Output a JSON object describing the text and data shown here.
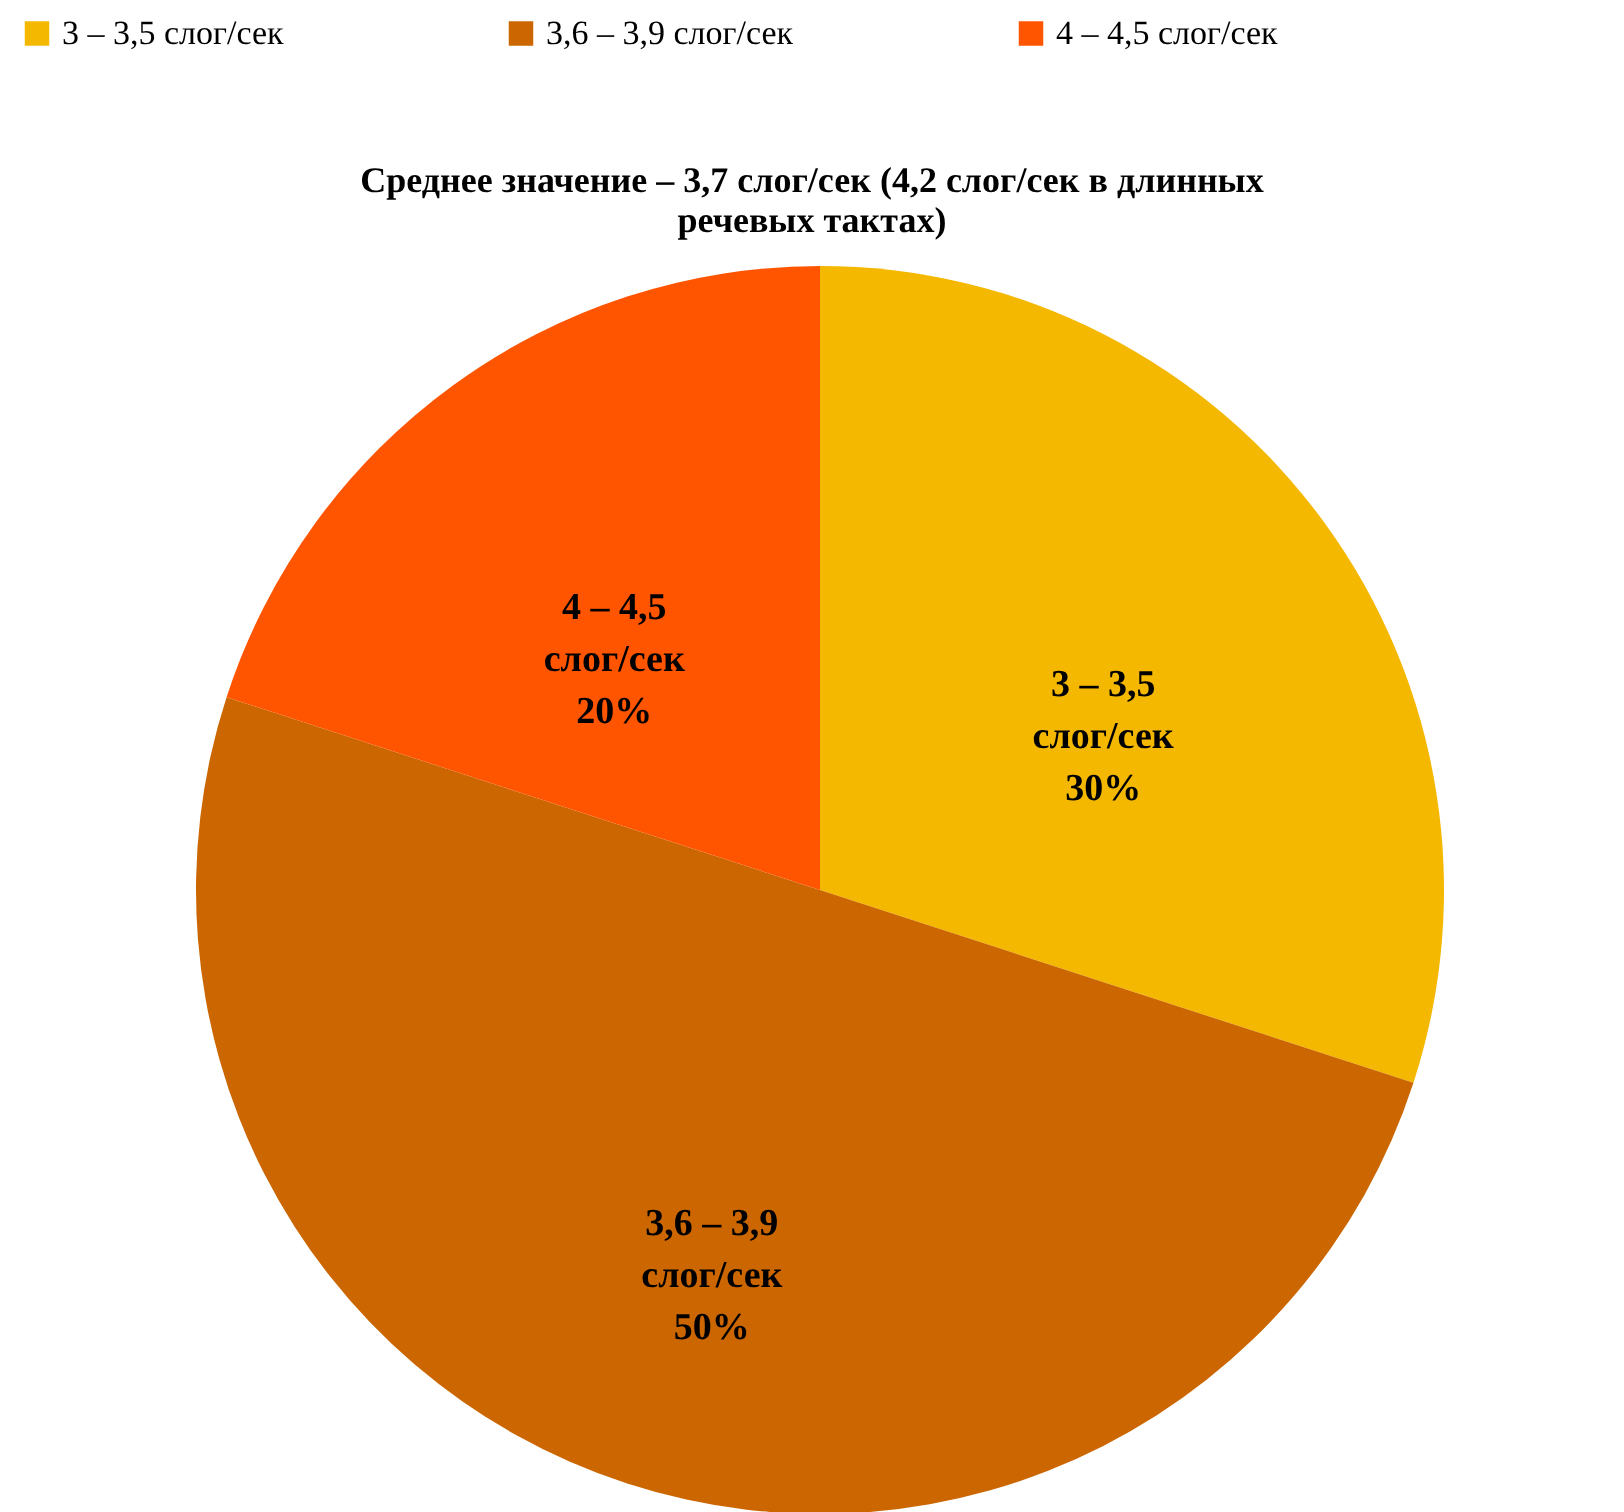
{
  "chart_data": {
    "type": "pie",
    "title": "Среднее значение – 3,7 слог/сек (4,2 слог/сек в длинных речевых тактах)",
    "categories": [
      "3 – 3,5 слог/сек",
      "3,6 – 3,9 слог/сек",
      "4 – 4,5 слог/сек"
    ],
    "values": [
      30,
      50,
      20
    ],
    "colors": [
      "#f5b800",
      "#cc6600",
      "#ff5500"
    ],
    "value_labels": [
      "30%",
      "50%",
      "20%"
    ],
    "legend": "top"
  }
}
